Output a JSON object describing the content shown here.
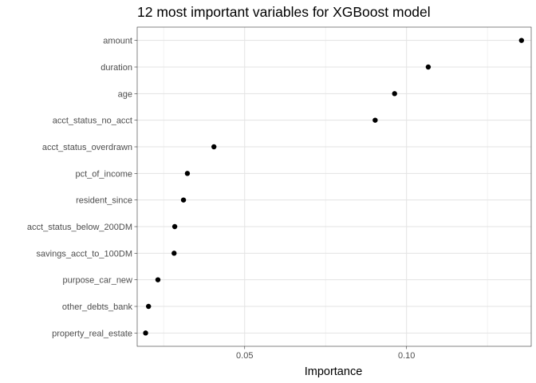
{
  "chart_data": {
    "type": "scatter",
    "title": "12 most important variables for XGBoost model",
    "xlabel": "Importance",
    "ylabel": "",
    "xlim": [
      0.0168,
      0.1385
    ],
    "x_ticks": [
      0.05,
      0.1
    ],
    "x_tick_labels": [
      "0.05",
      "0.10"
    ],
    "x_minor_ticks": [
      0.025,
      0.075,
      0.125
    ],
    "grid": true,
    "legend": "none",
    "point_color": "#000000",
    "categories": [
      "amount",
      "duration",
      "age",
      "acct_status_no_acct",
      "acct_status_overdrawn",
      "pct_of_income",
      "resident_since",
      "acct_status_below_200DM",
      "savings_acct_to_100DM",
      "purpose_car_new",
      "other_debts_bank",
      "property_real_estate"
    ],
    "values": [
      0.1355,
      0.1067,
      0.0963,
      0.0903,
      0.0405,
      0.0323,
      0.0311,
      0.0284,
      0.0282,
      0.0232,
      0.0203,
      0.0194
    ]
  }
}
